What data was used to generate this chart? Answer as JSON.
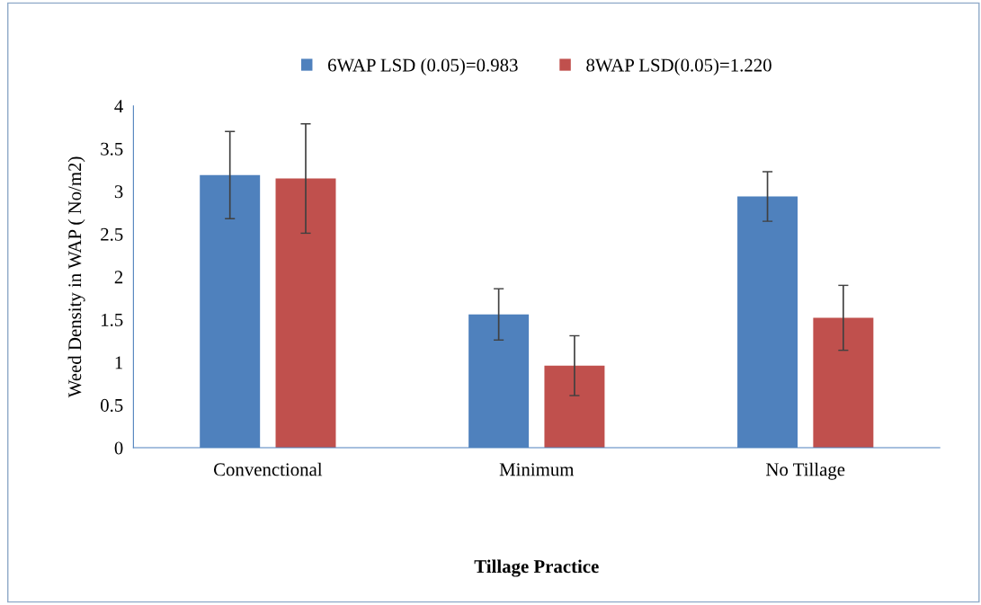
{
  "chart_data": {
    "type": "bar",
    "xlabel": "Tillage Practice",
    "ylabel": "Weed Density in WAP ( No/m2)",
    "categories": [
      "Convenctional",
      "Minimum",
      "No Tillage"
    ],
    "series": [
      {
        "name": "6WAP LSD (0.05)=0.983",
        "color": "#4f81bd",
        "values": [
          3.19,
          1.56,
          2.94
        ],
        "errors": [
          0.51,
          0.3,
          0.29
        ]
      },
      {
        "name": "8WAP LSD(0.05)=1.220",
        "color": "#c0504d",
        "values": [
          3.15,
          0.96,
          1.52
        ],
        "errors": [
          0.64,
          0.35,
          0.38
        ]
      }
    ],
    "ylim": [
      0,
      4
    ],
    "yticks": [
      0,
      {
        "value": 0.5,
        "label": "0.5"
      },
      1,
      {
        "value": 1.5,
        "label": "1.5"
      },
      2,
      {
        "value": 2.5,
        "label": "2.5"
      },
      3,
      {
        "value": 3.5,
        "label": "3.5"
      },
      4
    ],
    "grid": false,
    "legend": "top"
  }
}
